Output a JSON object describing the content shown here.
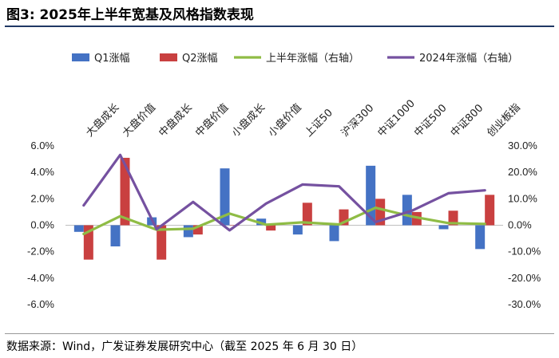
{
  "figure": {
    "title": "图3:  2025年上半年宽基及风格指数表现",
    "source": "数据来源：Wind，广发证券发展研究中心（截至 2025 年 6 月 30 日）"
  },
  "colors": {
    "q1": "#4472c4",
    "q2": "#c94040",
    "h1": "#8fbc45",
    "y2024": "#7551a0",
    "title_rule": "#1f3864"
  },
  "chart_data": {
    "type": "bar",
    "categories": [
      "大盘成长",
      "大盘价值",
      "中盘成长",
      "中盘价值",
      "小盘成长",
      "小盘价值",
      "上证50",
      "沪深300",
      "中证1000",
      "中证500",
      "中证800",
      "创业板指"
    ],
    "series": [
      {
        "name": "Q1涨幅",
        "type": "bar",
        "axis": "left",
        "values": [
          -0.5,
          -1.6,
          0.6,
          -0.9,
          4.3,
          0.5,
          -0.7,
          -1.2,
          4.5,
          2.3,
          -0.3,
          -1.8
        ]
      },
      {
        "name": "Q2涨幅",
        "type": "bar",
        "axis": "left",
        "values": [
          -2.6,
          5.1,
          -2.6,
          -0.7,
          0.0,
          -0.4,
          1.7,
          1.2,
          2.0,
          1.0,
          1.1,
          2.3
        ]
      },
      {
        "name": "上半年涨幅（右轴）",
        "type": "line",
        "axis": "right",
        "values": [
          -3.3,
          3.4,
          -1.7,
          -1.3,
          4.4,
          0.2,
          1.1,
          0.3,
          6.6,
          3.3,
          0.8,
          0.5
        ]
      },
      {
        "name": "2024年涨幅（右轴）",
        "type": "line",
        "axis": "right",
        "values": [
          7.5,
          26.6,
          -1.5,
          8.8,
          -1.9,
          8.2,
          15.4,
          14.7,
          1.2,
          5.5,
          12.1,
          13.2
        ]
      }
    ],
    "y_left": {
      "min": -6,
      "max": 6,
      "step": 2,
      "ticks": [
        "-6.0%",
        "-4.0%",
        "-2.0%",
        "0.0%",
        "2.0%",
        "4.0%",
        "6.0%"
      ]
    },
    "y_right": {
      "min": -30,
      "max": 30,
      "step": 10,
      "ticks": [
        "-30.0%",
        "-20.0%",
        "-10.0%",
        "0.0%",
        "10.0%",
        "20.0%",
        "30.0%"
      ]
    },
    "legend_position": "top",
    "grid": false
  }
}
